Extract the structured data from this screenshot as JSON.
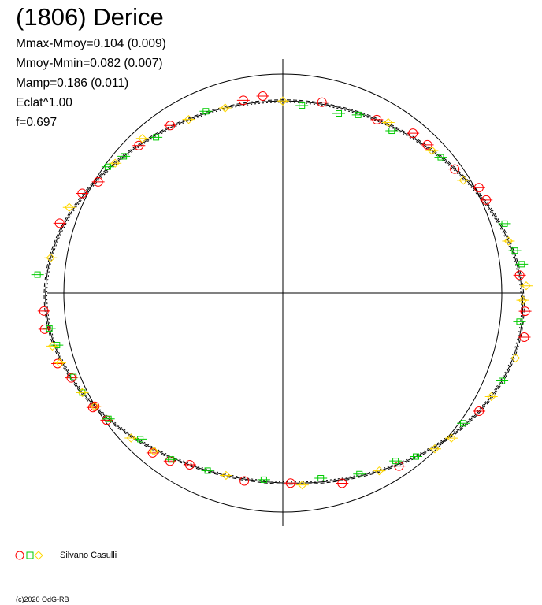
{
  "title": "(1806) Derice",
  "stats": [
    "Mmax-Mmoy=0.104 (0.009)",
    "Mmoy-Mmin=0.082 (0.007)",
    "Mamp=0.186 (0.011)",
    "Eclat^1.00",
    "f=0.697"
  ],
  "legend": {
    "observer": "Silvano Casulli",
    "symbols": [
      "circle",
      "square",
      "diamond"
    ],
    "colors": {
      "circle": "#ff0000",
      "square": "#00cc00",
      "diamond": "#ffd700"
    }
  },
  "copyright": "(c)2020 OdG-RB",
  "chart_data": {
    "type": "scatter",
    "description_kind": "polar lightcurve",
    "reference_circle": true,
    "axes_cross": true,
    "fit_curve": {
      "harmonics": [
        {
          "n": 1,
          "a": 0.012,
          "p": 0.7
        },
        {
          "n": 2,
          "a": 0.038,
          "p": 0.35
        },
        {
          "n": 3,
          "a": 0.014,
          "p": 1.9
        },
        {
          "n": 4,
          "a": 0.006,
          "p": 0.2
        }
      ],
      "base": 1.0,
      "y_scale": 0.86
    },
    "series": [
      {
        "symbol": "circle",
        "color": "#ff0000",
        "points": [
          {
            "angle": 100,
            "r": 1.02
          },
          {
            "angle": 95,
            "r": 1.03
          },
          {
            "angle": 80,
            "r": 1.01
          },
          {
            "angle": 65,
            "r": 1.0
          },
          {
            "angle": 55,
            "r": 1.02
          },
          {
            "angle": 50,
            "r": 1.01
          },
          {
            "angle": 40,
            "r": 1.0
          },
          {
            "angle": 32,
            "r": 1.02
          },
          {
            "angle": 28,
            "r": 1.01
          },
          {
            "angle": 5,
            "r": 1.0
          },
          {
            "angle": -5,
            "r": 1.01
          },
          {
            "angle": -12,
            "r": 1.02
          },
          {
            "angle": -35,
            "r": 1.0
          },
          {
            "angle": -60,
            "r": 1.01
          },
          {
            "angle": -75,
            "r": 1.02
          },
          {
            "angle": -88,
            "r": 1.0
          },
          {
            "angle": -100,
            "r": 1.01
          },
          {
            "angle": -120,
            "r": 1.02
          },
          {
            "angle": -140,
            "r": 1.01
          },
          {
            "angle": -155,
            "r": 1.0
          },
          {
            "angle": -170,
            "r": 1.02
          },
          {
            "angle": 185,
            "r": 1.01
          },
          {
            "angle": 200,
            "r": 1.02
          },
          {
            "angle": 215,
            "r": 1.01
          },
          {
            "angle": 235,
            "r": 1.02
          },
          {
            "angle": 215,
            "r": 1.0
          },
          {
            "angle": 150,
            "r": 1.01
          },
          {
            "angle": 145,
            "r": 0.99
          },
          {
            "angle": 160,
            "r": 1.02
          },
          {
            "angle": 120,
            "r": 1.01
          },
          {
            "angle": 130,
            "r": 1.0
          },
          {
            "angle": -115,
            "r": 1.0
          }
        ]
      },
      {
        "symbol": "square",
        "color": "#00cc00",
        "points": [
          {
            "angle": 110,
            "r": 1.01
          },
          {
            "angle": 85,
            "r": 0.98
          },
          {
            "angle": 75,
            "r": 0.97
          },
          {
            "angle": 70,
            "r": 0.99
          },
          {
            "angle": 45,
            "r": 1.0
          },
          {
            "angle": 20,
            "r": 1.02
          },
          {
            "angle": 12,
            "r": 1.01
          },
          {
            "angle": 8,
            "r": 1.02
          },
          {
            "angle": -8,
            "r": 0.99
          },
          {
            "angle": -25,
            "r": 1.0
          },
          {
            "angle": -40,
            "r": 0.99
          },
          {
            "angle": -55,
            "r": 1.0
          },
          {
            "angle": -70,
            "r": 0.99
          },
          {
            "angle": -80,
            "r": 0.98
          },
          {
            "angle": -95,
            "r": 0.99
          },
          {
            "angle": -110,
            "r": 1.0
          },
          {
            "angle": -130,
            "r": 0.99
          },
          {
            "angle": -150,
            "r": 1.0
          },
          {
            "angle": -165,
            "r": 0.99
          },
          {
            "angle": 175,
            "r": 1.04
          },
          {
            "angle": 190,
            "r": 1.0
          },
          {
            "angle": 205,
            "r": 0.99
          },
          {
            "angle": 220,
            "r": 1.0
          },
          {
            "angle": 240,
            "r": 1.01
          },
          {
            "angle": 135,
            "r": 1.0
          },
          {
            "angle": 125,
            "r": 0.99
          },
          {
            "angle": 140,
            "r": 1.01
          },
          {
            "angle": -60,
            "r": 0.98
          },
          {
            "angle": 60,
            "r": 0.98
          }
        ]
      },
      {
        "symbol": "diamond",
        "color": "#ffd700",
        "points": [
          {
            "angle": 115,
            "r": 1.0
          },
          {
            "angle": 105,
            "r": 1.0
          },
          {
            "angle": 90,
            "r": 1.0
          },
          {
            "angle": 62,
            "r": 1.01
          },
          {
            "angle": 48,
            "r": 1.0
          },
          {
            "angle": 36,
            "r": 0.99
          },
          {
            "angle": 15,
            "r": 1.0
          },
          {
            "angle": 2,
            "r": 1.02
          },
          {
            "angle": -2,
            "r": 1.0
          },
          {
            "angle": -18,
            "r": 1.01
          },
          {
            "angle": -30,
            "r": 1.0
          },
          {
            "angle": -45,
            "r": 1.01
          },
          {
            "angle": -65,
            "r": 1.0
          },
          {
            "angle": -85,
            "r": 1.01
          },
          {
            "angle": -105,
            "r": 1.0
          },
          {
            "angle": -125,
            "r": 1.01
          },
          {
            "angle": -145,
            "r": 1.0
          },
          {
            "angle": -160,
            "r": 1.01
          },
          {
            "angle": 170,
            "r": 1.0
          },
          {
            "angle": 195,
            "r": 1.01
          },
          {
            "angle": 210,
            "r": 1.0
          },
          {
            "angle": 228,
            "r": 1.01
          },
          {
            "angle": 155,
            "r": 1.02
          },
          {
            "angle": 138,
            "r": 1.0
          },
          {
            "angle": 128,
            "r": 1.02
          },
          {
            "angle": -50,
            "r": 1.01
          }
        ]
      }
    ]
  }
}
